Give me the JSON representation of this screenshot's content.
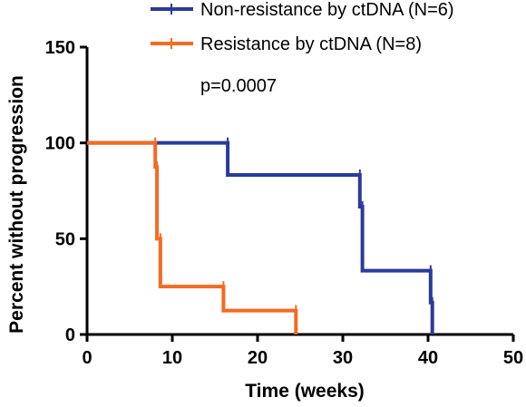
{
  "chart_data": {
    "type": "line",
    "xlabel": "Time (weeks)",
    "ylabel": "Percent without progression",
    "xlim": [
      0,
      50
    ],
    "ylim": [
      0,
      150
    ],
    "x_ticks": [
      0,
      10,
      20,
      30,
      40,
      50
    ],
    "y_ticks": [
      0,
      50,
      100,
      150
    ],
    "grid": false,
    "legend_position": "top",
    "annotation": "p=0.0007",
    "series": [
      {
        "name": "Non-resistance by ctDNA (N=6)",
        "color": "#2b3a9a",
        "step": true,
        "x": [
          0,
          16.5,
          32.0,
          32.3,
          40.3,
          40.5
        ],
        "y": [
          100,
          83.3,
          66.7,
          33.3,
          16.7,
          0
        ]
      },
      {
        "name": "Resistance by ctDNA (N=8)",
        "color": "#f46b21",
        "step": true,
        "x": [
          0,
          8.0,
          8.2,
          8.6,
          16.0,
          24.5
        ],
        "y": [
          100,
          87.5,
          50.0,
          25.0,
          12.5,
          0
        ]
      }
    ]
  }
}
